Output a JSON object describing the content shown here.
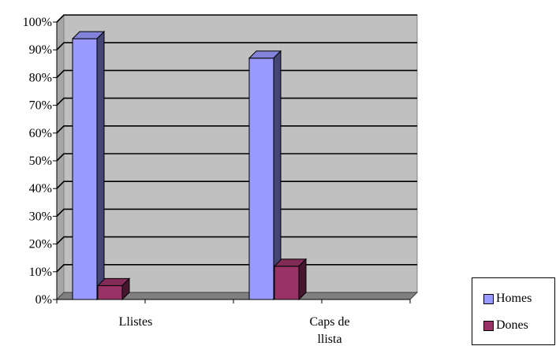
{
  "chart_data": {
    "type": "bar",
    "categories": [
      "Llistes",
      "Caps de llista"
    ],
    "category_lines": [
      [
        "Llistes"
      ],
      [
        "Caps de",
        "llista"
      ]
    ],
    "series": [
      {
        "name": "Homes",
        "values": [
          94,
          87
        ],
        "color": "#9999ff"
      },
      {
        "name": "Dones",
        "values": [
          5,
          12
        ],
        "color": "#993366"
      }
    ],
    "ylim": [
      0,
      100
    ],
    "yticks": [
      "0%",
      "10%",
      "20%",
      "30%",
      "40%",
      "50%",
      "60%",
      "70%",
      "80%",
      "90%",
      "100%"
    ],
    "grid": true,
    "legend_position": "bottom-right",
    "plot_background": "#c0c0c0"
  }
}
